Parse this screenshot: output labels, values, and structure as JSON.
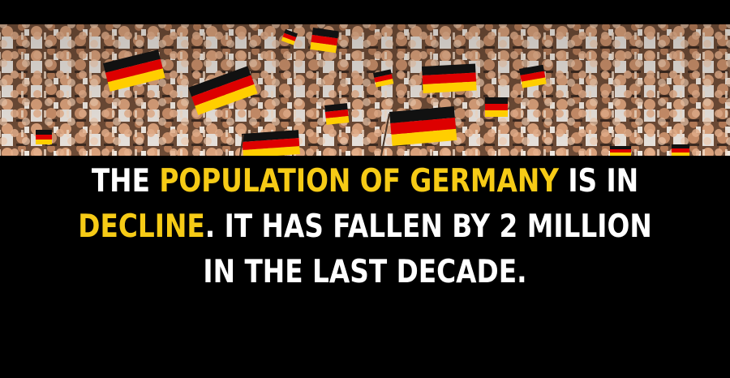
{
  "caption": {
    "line1": {
      "a": "THE ",
      "highlight": "POPULATION OF GERMANY",
      "b": " IS IN"
    },
    "line2": {
      "highlight": "DECLINE",
      "b": ". IT HAS FALLEN BY 2 MILLION"
    },
    "line3": {
      "a": "IN THE LAST DECADE."
    }
  },
  "colors": {
    "background": "#000000",
    "text": "#ffffff",
    "highlight": "#f6cb16",
    "flag_black": "#000000",
    "flag_red": "#dd0000",
    "flag_gold": "#ffce00"
  }
}
